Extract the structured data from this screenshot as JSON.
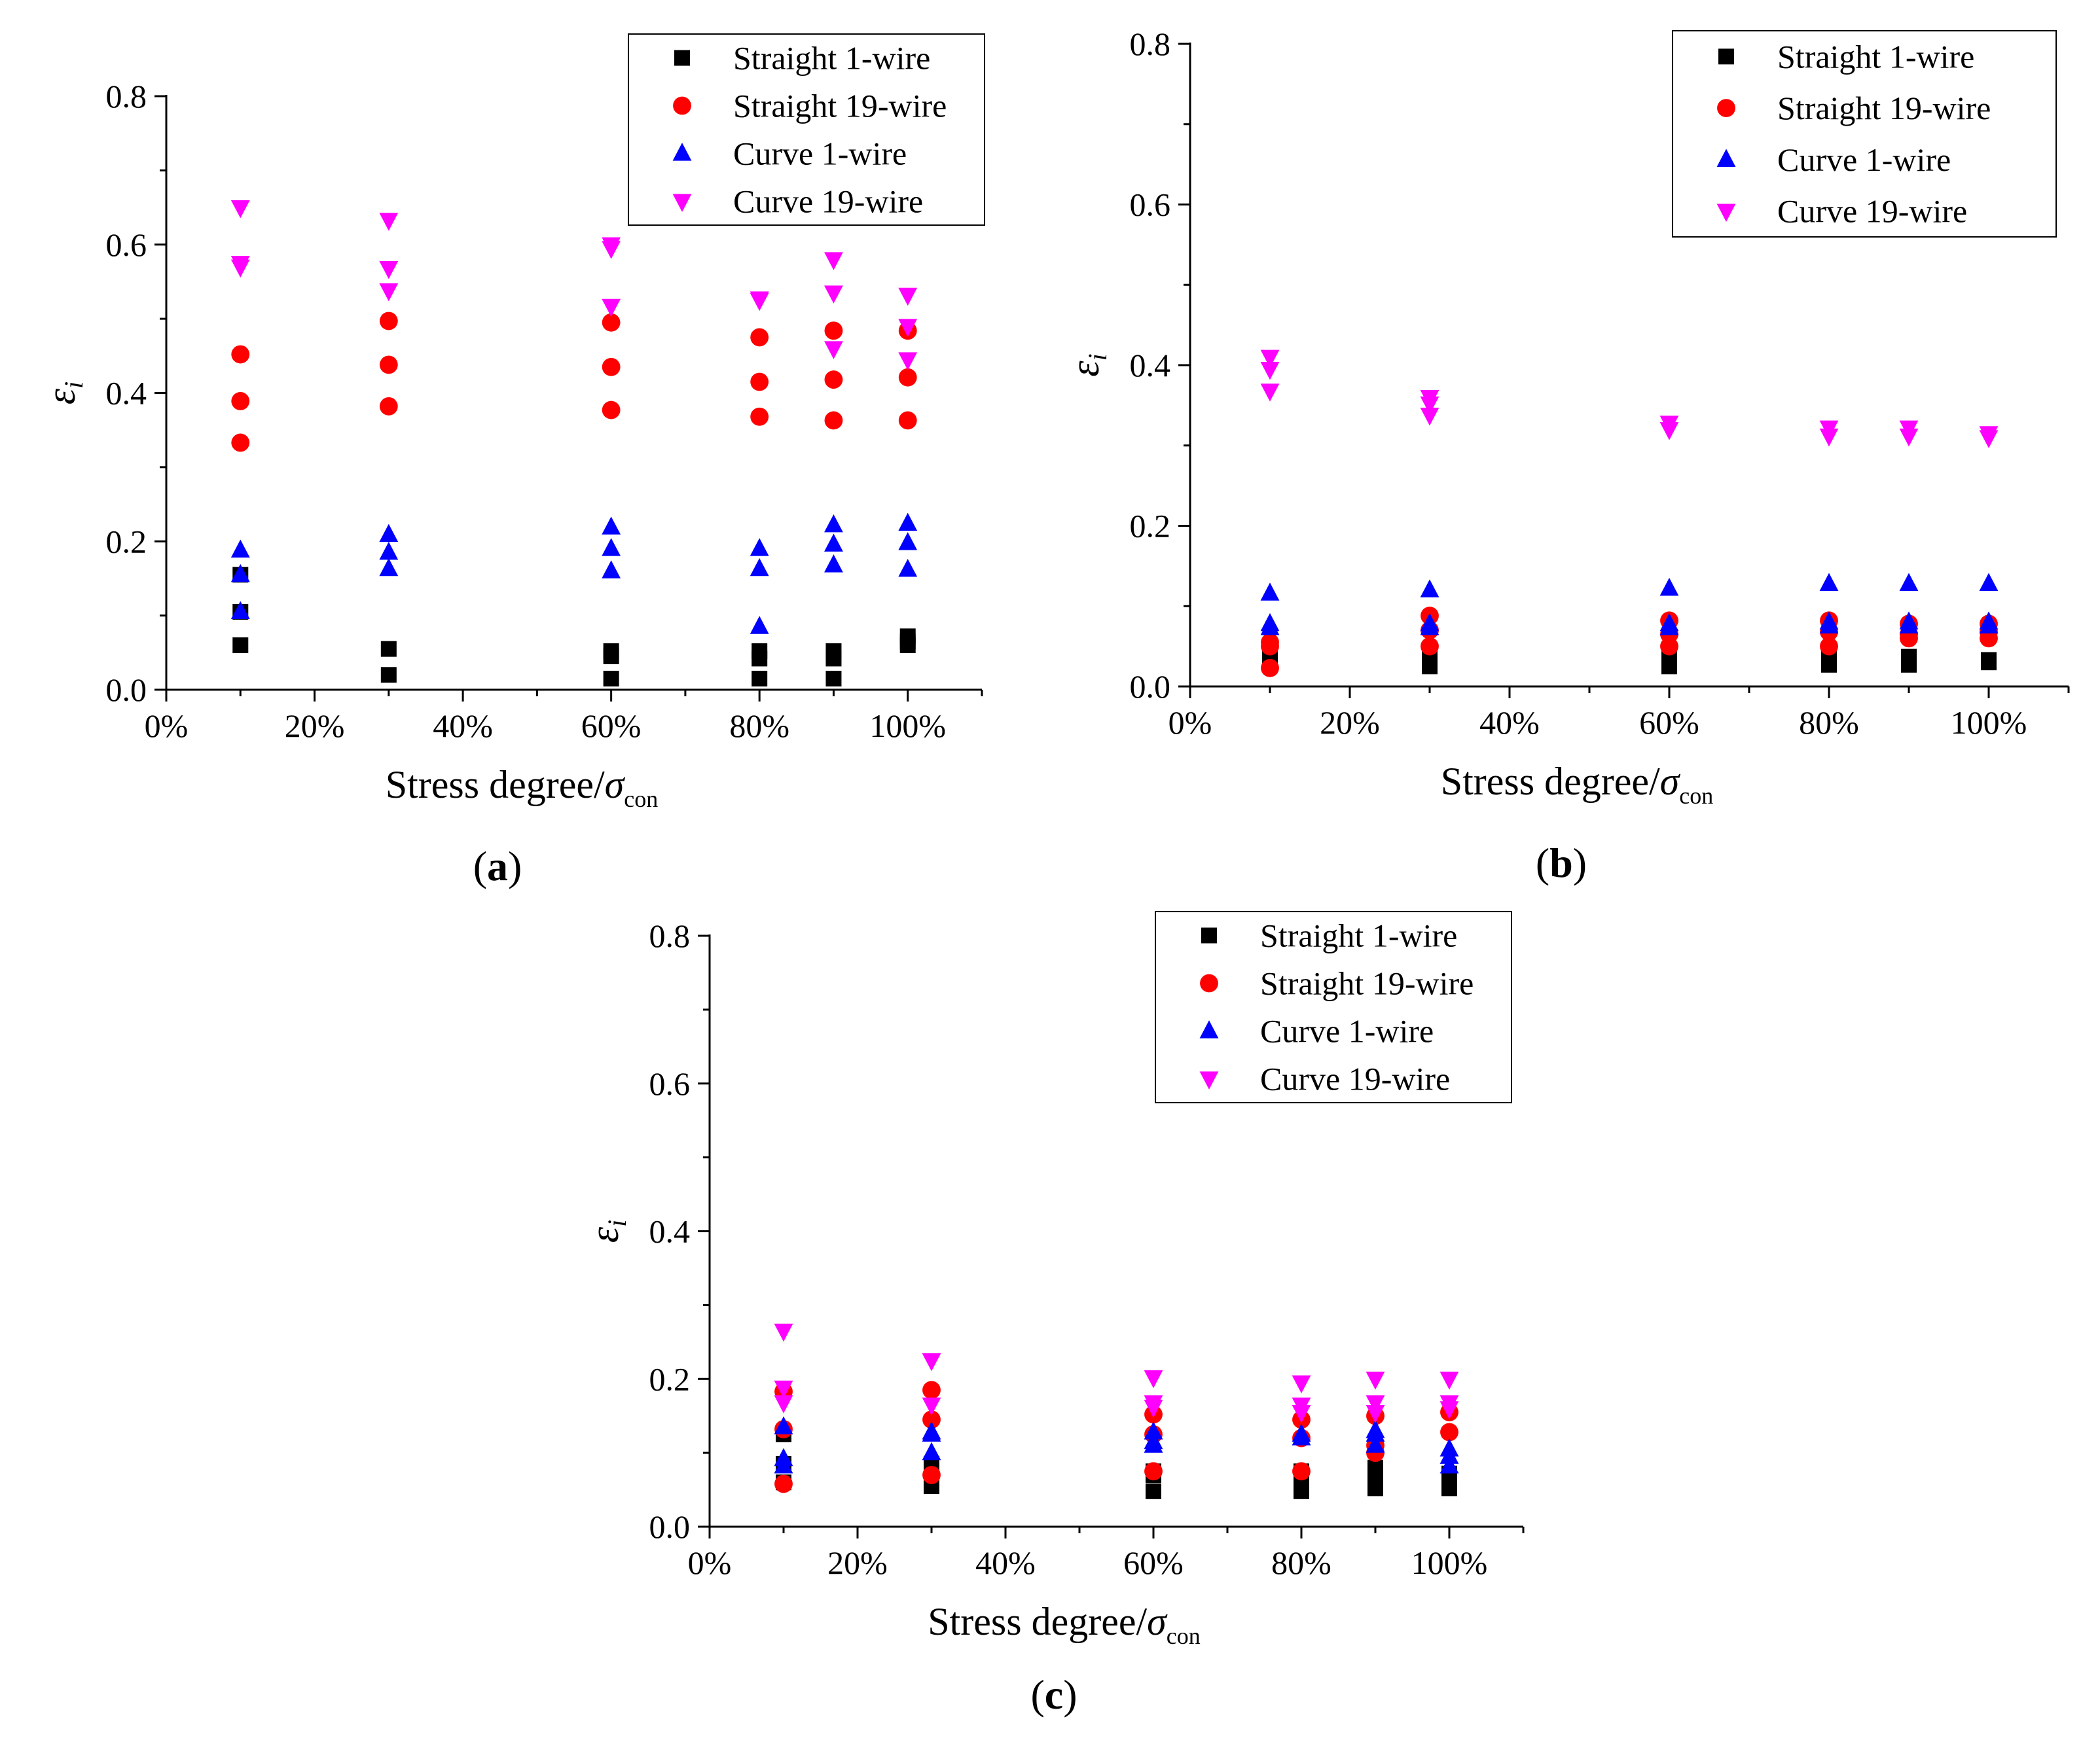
{
  "figure": {
    "series_colors": {
      "straight_1wire": "#000000",
      "straight_19wire": "#ff0000",
      "curve_1wire": "#0000ff",
      "curve_19wire": "#ff00ff"
    }
  },
  "chart_data": [
    {
      "type": "scatter",
      "panel_label": "(a)",
      "panel_letter": "a",
      "xlabel": "Stress degree/",
      "xlabel_symbol": "σ",
      "xlabel_subscript": "con",
      "ylabel": "ε",
      "ylabel_subscript": "i",
      "xlim": [
        0,
        110
      ],
      "ylim": [
        0,
        0.8
      ],
      "xticks": [
        0,
        20,
        40,
        60,
        80,
        100
      ],
      "xtick_labels": [
        "0%",
        "20%",
        "40%",
        "60%",
        "80%",
        "100%"
      ],
      "yticks": [
        0.0,
        0.2,
        0.4,
        0.6,
        0.8
      ],
      "ytick_labels": [
        "0.0",
        "0.2",
        "0.4",
        "0.6",
        "0.8"
      ],
      "legend": [
        "Straight 1-wire",
        "Straight 19-wire",
        "Curve 1-wire",
        "Curve 19-wire"
      ],
      "legend_position": "top-right",
      "series": [
        {
          "name": "Straight 1-wire",
          "marker": "square",
          "color": "#000000",
          "points": [
            [
              10,
              0.06
            ],
            [
              10,
              0.105
            ],
            [
              10,
              0.155
            ],
            [
              30,
              0.02
            ],
            [
              30,
              0.055
            ],
            [
              60,
              0.015
            ],
            [
              60,
              0.045
            ],
            [
              60,
              0.052
            ],
            [
              80,
              0.015
            ],
            [
              80,
              0.042
            ],
            [
              80,
              0.052
            ],
            [
              90,
              0.015
            ],
            [
              90,
              0.042
            ],
            [
              90,
              0.052
            ],
            [
              100,
              0.06
            ],
            [
              100,
              0.065
            ],
            [
              100,
              0.072
            ]
          ]
        },
        {
          "name": "Straight 19-wire",
          "marker": "circle",
          "color": "#ff0000",
          "points": [
            [
              10,
              0.333
            ],
            [
              10,
              0.389
            ],
            [
              10,
              0.452
            ],
            [
              30,
              0.382
            ],
            [
              30,
              0.438
            ],
            [
              30,
              0.497
            ],
            [
              60,
              0.377
            ],
            [
              60,
              0.435
            ],
            [
              60,
              0.495
            ],
            [
              80,
              0.368
            ],
            [
              80,
              0.415
            ],
            [
              80,
              0.475
            ],
            [
              90,
              0.363
            ],
            [
              90,
              0.418
            ],
            [
              90,
              0.484
            ],
            [
              100,
              0.363
            ],
            [
              100,
              0.421
            ],
            [
              100,
              0.484
            ]
          ]
        },
        {
          "name": "Curve 1-wire",
          "marker": "triangle-up",
          "color": "#0000ff",
          "points": [
            [
              10,
              0.105
            ],
            [
              10,
              0.155
            ],
            [
              10,
              0.188
            ],
            [
              30,
              0.163
            ],
            [
              30,
              0.185
            ],
            [
              30,
              0.209
            ],
            [
              60,
              0.16
            ],
            [
              60,
              0.19
            ],
            [
              60,
              0.219
            ],
            [
              80,
              0.085
            ],
            [
              80,
              0.163
            ],
            [
              80,
              0.19
            ],
            [
              90,
              0.168
            ],
            [
              90,
              0.196
            ],
            [
              90,
              0.222
            ],
            [
              100,
              0.162
            ],
            [
              100,
              0.198
            ],
            [
              100,
              0.224
            ]
          ]
        },
        {
          "name": "Curve 19-wire",
          "marker": "triangle-down",
          "color": "#ff00ff",
          "points": [
            [
              10,
              0.57
            ],
            [
              10,
              0.575
            ],
            [
              10,
              0.65
            ],
            [
              30,
              0.538
            ],
            [
              30,
              0.568
            ],
            [
              30,
              0.633
            ],
            [
              60,
              0.517
            ],
            [
              60,
              0.595
            ],
            [
              60,
              0.6
            ],
            [
              80,
              0.525
            ],
            [
              80,
              0.527
            ],
            [
              90,
              0.46
            ],
            [
              90,
              0.535
            ],
            [
              90,
              0.58
            ],
            [
              100,
              0.445
            ],
            [
              100,
              0.49
            ],
            [
              100,
              0.532
            ]
          ]
        }
      ]
    },
    {
      "type": "scatter",
      "panel_label": "(b)",
      "panel_letter": "b",
      "xlabel": "Stress degree/",
      "xlabel_symbol": "σ",
      "xlabel_subscript": "con",
      "ylabel": "ε",
      "ylabel_subscript": "i",
      "xlim": [
        0,
        110
      ],
      "ylim": [
        0,
        0.8
      ],
      "xticks": [
        0,
        20,
        40,
        60,
        80,
        100
      ],
      "xtick_labels": [
        "0%",
        "20%",
        "40%",
        "60%",
        "80%",
        "100%"
      ],
      "yticks": [
        0.0,
        0.2,
        0.4,
        0.6,
        0.8
      ],
      "ytick_labels": [
        "0.0",
        "0.2",
        "0.4",
        "0.6",
        "0.8"
      ],
      "legend": [
        "Straight 1-wire",
        "Straight 19-wire",
        "Curve 1-wire",
        "Curve 19-wire"
      ],
      "legend_position": "top-right",
      "series": [
        {
          "name": "Straight 1-wire",
          "marker": "square",
          "color": "#000000",
          "points": [
            [
              10,
              0.033
            ],
            [
              10,
              0.038
            ],
            [
              10,
              0.045
            ],
            [
              30,
              0.025
            ],
            [
              30,
              0.03
            ],
            [
              30,
              0.035
            ],
            [
              60,
              0.025
            ],
            [
              60,
              0.03
            ],
            [
              60,
              0.035
            ],
            [
              80,
              0.027
            ],
            [
              80,
              0.032
            ],
            [
              80,
              0.038
            ],
            [
              90,
              0.027
            ],
            [
              90,
              0.032
            ],
            [
              90,
              0.037
            ],
            [
              100,
              0.03
            ],
            [
              100,
              0.033
            ]
          ]
        },
        {
          "name": "Straight 19-wire",
          "marker": "circle",
          "color": "#ff0000",
          "points": [
            [
              10,
              0.023
            ],
            [
              10,
              0.05
            ],
            [
              10,
              0.055
            ],
            [
              30,
              0.05
            ],
            [
              30,
              0.07
            ],
            [
              30,
              0.088
            ],
            [
              60,
              0.05
            ],
            [
              60,
              0.065
            ],
            [
              60,
              0.082
            ],
            [
              80,
              0.05
            ],
            [
              80,
              0.068
            ],
            [
              80,
              0.082
            ],
            [
              90,
              0.06
            ],
            [
              90,
              0.065
            ],
            [
              90,
              0.078
            ],
            [
              100,
              0.06
            ],
            [
              100,
              0.068
            ],
            [
              100,
              0.078
            ]
          ]
        },
        {
          "name": "Curve 1-wire",
          "marker": "triangle-up",
          "color": "#0000ff",
          "points": [
            [
              10,
              0.073
            ],
            [
              10,
              0.078
            ],
            [
              10,
              0.116
            ],
            [
              30,
              0.073
            ],
            [
              30,
              0.078
            ],
            [
              30,
              0.12
            ],
            [
              60,
              0.073
            ],
            [
              60,
              0.078
            ],
            [
              60,
              0.122
            ],
            [
              80,
              0.075
            ],
            [
              80,
              0.08
            ],
            [
              80,
              0.128
            ],
            [
              90,
              0.075
            ],
            [
              90,
              0.08
            ],
            [
              90,
              0.128
            ],
            [
              100,
              0.075
            ],
            [
              100,
              0.08
            ],
            [
              100,
              0.128
            ]
          ]
        },
        {
          "name": "Curve 19-wire",
          "marker": "triangle-down",
          "color": "#ff00ff",
          "points": [
            [
              10,
              0.368
            ],
            [
              10,
              0.395
            ],
            [
              10,
              0.41
            ],
            [
              30,
              0.338
            ],
            [
              30,
              0.352
            ],
            [
              30,
              0.36
            ],
            [
              60,
              0.32
            ],
            [
              60,
              0.328
            ],
            [
              80,
              0.312
            ],
            [
              80,
              0.322
            ],
            [
              90,
              0.312
            ],
            [
              90,
              0.322
            ],
            [
              100,
              0.31
            ],
            [
              100,
              0.315
            ]
          ]
        }
      ]
    },
    {
      "type": "scatter",
      "panel_label": "(c)",
      "panel_letter": "c",
      "xlabel": "Stress degree/",
      "xlabel_symbol": "σ",
      "xlabel_subscript": "con",
      "ylabel": "ε",
      "ylabel_subscript": "i",
      "xlim": [
        0,
        110
      ],
      "ylim": [
        0,
        0.8
      ],
      "xticks": [
        0,
        20,
        40,
        60,
        80,
        100
      ],
      "xtick_labels": [
        "0%",
        "20%",
        "40%",
        "60%",
        "80%",
        "100%"
      ],
      "yticks": [
        0.0,
        0.2,
        0.4,
        0.6,
        0.8
      ],
      "ytick_labels": [
        "0.0",
        "0.2",
        "0.4",
        "0.6",
        "0.8"
      ],
      "legend": [
        "Straight 1-wire",
        "Straight 19-wire",
        "Curve 1-wire",
        "Curve 19-wire"
      ],
      "legend_position": "top-right",
      "series": [
        {
          "name": "Straight 1-wire",
          "marker": "square",
          "color": "#000000",
          "points": [
            [
              10,
              0.06
            ],
            [
              10,
              0.085
            ],
            [
              10,
              0.125
            ],
            [
              30,
              0.055
            ],
            [
              30,
              0.075
            ],
            [
              30,
              0.085
            ],
            [
              60,
              0.048
            ],
            [
              60,
              0.07
            ],
            [
              60,
              0.075
            ],
            [
              80,
              0.048
            ],
            [
              80,
              0.06
            ],
            [
              80,
              0.075
            ],
            [
              90,
              0.052
            ],
            [
              90,
              0.07
            ],
            [
              90,
              0.08
            ],
            [
              100,
              0.052
            ],
            [
              100,
              0.065
            ],
            [
              100,
              0.072
            ]
          ]
        },
        {
          "name": "Straight 19-wire",
          "marker": "circle",
          "color": "#ff0000",
          "points": [
            [
              10,
              0.058
            ],
            [
              10,
              0.132
            ],
            [
              10,
              0.183
            ],
            [
              30,
              0.07
            ],
            [
              30,
              0.145
            ],
            [
              30,
              0.185
            ],
            [
              60,
              0.075
            ],
            [
              60,
              0.125
            ],
            [
              60,
              0.152
            ],
            [
              80,
              0.075
            ],
            [
              80,
              0.12
            ],
            [
              80,
              0.145
            ],
            [
              90,
              0.1
            ],
            [
              90,
              0.11
            ],
            [
              90,
              0.15
            ],
            [
              100,
              0.128
            ],
            [
              100,
              0.155
            ]
          ]
        },
        {
          "name": "Curve 1-wire",
          "marker": "triangle-up",
          "color": "#0000ff",
          "points": [
            [
              10,
              0.082
            ],
            [
              10,
              0.092
            ],
            [
              10,
              0.135
            ],
            [
              30,
              0.1
            ],
            [
              30,
              0.125
            ],
            [
              30,
              0.128
            ],
            [
              60,
              0.11
            ],
            [
              60,
              0.115
            ],
            [
              60,
              0.128
            ],
            [
              80,
              0.12
            ],
            [
              80,
              0.125
            ],
            [
              90,
              0.11
            ],
            [
              90,
              0.125
            ],
            [
              90,
              0.13
            ],
            [
              100,
              0.082
            ],
            [
              100,
              0.095
            ],
            [
              100,
              0.105
            ]
          ]
        },
        {
          "name": "Curve 19-wire",
          "marker": "triangle-down",
          "color": "#ff00ff",
          "points": [
            [
              10,
              0.168
            ],
            [
              10,
              0.188
            ],
            [
              10,
              0.265
            ],
            [
              30,
              0.165
            ],
            [
              30,
              0.225
            ],
            [
              60,
              0.162
            ],
            [
              60,
              0.168
            ],
            [
              60,
              0.202
            ],
            [
              80,
              0.155
            ],
            [
              80,
              0.165
            ],
            [
              80,
              0.195
            ],
            [
              90,
              0.155
            ],
            [
              90,
              0.168
            ],
            [
              90,
              0.2
            ],
            [
              100,
              0.16
            ],
            [
              100,
              0.168
            ],
            [
              100,
              0.2
            ]
          ]
        }
      ]
    }
  ]
}
